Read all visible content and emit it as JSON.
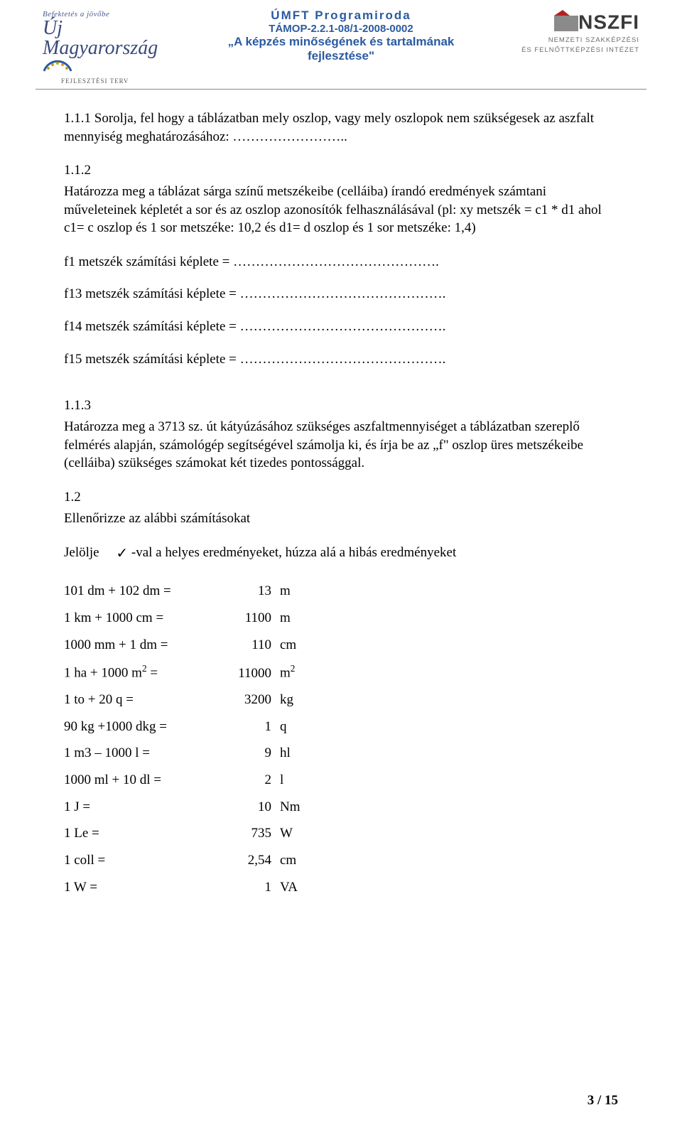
{
  "header": {
    "left_logo": {
      "tagline": "Befektetés a jövőbe",
      "main": "Új Magyarország",
      "sub": "FEJLESZTÉSI TERV"
    },
    "center": {
      "line1": "ÚMFT Programiroda",
      "line2": "TÁMOP-2.2.1-08/1-2008-0002",
      "line3": "„A képzés minőségének és tartalmának",
      "line4": "fejlesztése\""
    },
    "right_logo": {
      "acronym": "NSZFI",
      "sub1": "NEMZETI SZAKKÉPZÉSI",
      "sub2": "ÉS FELNŐTTKÉPZÉSI INTÉZET",
      "accent_color": "#b22222",
      "box_bg": "#8a8a8a"
    }
  },
  "colors": {
    "header_blue": "#2a5aa0",
    "logo_blue": "#3a4a7a",
    "text": "#000000"
  },
  "body": {
    "p111": "1.1.1 Sorolja, fel hogy a táblázatban mely oszlop, vagy mely oszlopok nem szükségesek az aszfalt mennyiség meghatározásához: ……………………..",
    "p112_label": "1.1.2",
    "p112": "Határozza meg a táblázat sárga színű metszékeibe (celláiba) írandó eredmények számtani műveleteinek képletét a sor és az oszlop azonosítók felhasználásával (pl: xy metszék = c1 * d1 ahol  c1= c oszlop és 1 sor metszéke: 10,2  és d1= d oszlop és 1 sor metszéke: 1,4)",
    "f1": "f1 metszék számítási képlete    = ……………………………………….",
    "f13": "f13 metszék számítási képlete  = ……………………………………….",
    "f14": "f14 metszék számítási képlete  = ……………………………………….",
    "f15": "f15 metszék számítási képlete  = ……………………………………….",
    "p113_label": "1.1.3",
    "p113": "Határozza meg a 3713 sz. út kátyúzásához szükséges aszfaltmennyiséget a táblázatban szereplő felmérés alapján, számológép segítségével számolja ki, és írja be az „f\" oszlop üres metszékeibe (celláiba) szükséges számokat két tizedes pontossággal.",
    "p12_label": "1.2",
    "p12": "Ellenőrizze az alábbi számításokat",
    "jelolje_pre": "Jelölje",
    "jelolje_post": "-val a helyes eredményeket, húzza alá a hibás eredményeket"
  },
  "checks": [
    {
      "lhs": "101 dm + 102 dm =",
      "val": "13",
      "unit": "m"
    },
    {
      "lhs": "1 km + 1000 cm =",
      "val": "1100",
      "unit": "m"
    },
    {
      "lhs": "1000 mm + 1 dm =",
      "val": "110",
      "unit": "cm"
    },
    {
      "lhs": "1 ha + 1000  m² =",
      "val": "11000",
      "unit": "m²"
    },
    {
      "lhs": "1 to + 20 q =",
      "val": "3200",
      "unit": "kg"
    },
    {
      "lhs": "90 kg +1000 dkg =",
      "val": "1",
      "unit": "q"
    },
    {
      "lhs": " 1 m3 – 1000 l =",
      "val": "9",
      "unit": "hl"
    },
    {
      "lhs": "1000 ml + 10 dl =",
      "val": "2",
      "unit": "l"
    },
    {
      "lhs": "1 J =",
      "val": "10",
      "unit": "Nm"
    },
    {
      "lhs": "1 Le =",
      "val": "735",
      "unit": "W"
    },
    {
      "lhs": "1 coll =",
      "val": "2,54",
      "unit": "cm"
    },
    {
      "lhs": "1 W =",
      "val": "1",
      "unit": "VA"
    }
  ],
  "footer": {
    "page": "3 / 15"
  }
}
